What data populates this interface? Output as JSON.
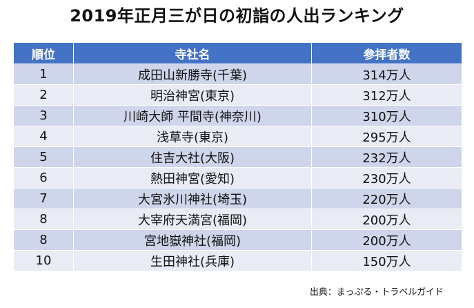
{
  "title": "2019年正月三が日の初詣の人出ランキング",
  "table": {
    "headers": [
      "順位",
      "寺社名",
      "参拝者数"
    ],
    "rows": [
      {
        "rank": "1",
        "name": "成田山新勝寺(千葉)",
        "count": "314万人"
      },
      {
        "rank": "2",
        "name": "明治神宮(東京)",
        "count": "312万人"
      },
      {
        "rank": "3",
        "name": "川崎大師 平間寺(神奈川)",
        "count": "310万人"
      },
      {
        "rank": "4",
        "name": "浅草寺(東京)",
        "count": "295万人"
      },
      {
        "rank": "5",
        "name": "住吉大社(大阪)",
        "count": "232万人"
      },
      {
        "rank": "6",
        "name": "熱田神宮(愛知)",
        "count": "230万人"
      },
      {
        "rank": "7",
        "name": "大宮氷川神社(埼玉)",
        "count": "220万人"
      },
      {
        "rank": "8",
        "name": "大宰府天満宮(福岡)",
        "count": "200万人"
      },
      {
        "rank": "8",
        "name": "宮地嶽神社(福岡)",
        "count": "200万人"
      },
      {
        "rank": "10",
        "name": "生田神社(兵庫)",
        "count": "150万人"
      }
    ]
  },
  "source": "出典：まっぷる・トラベルガイド",
  "colors": {
    "header_bg": "#4472c4",
    "row_odd": "#cfd5ea",
    "row_even": "#e9ebf5"
  }
}
